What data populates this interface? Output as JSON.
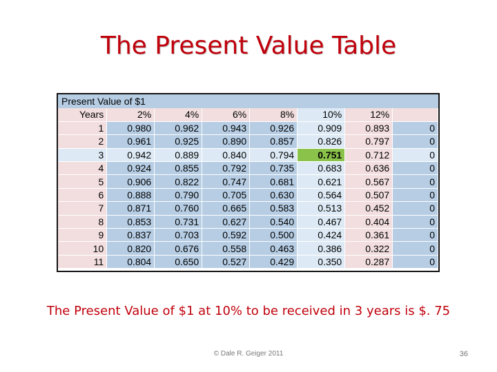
{
  "slide": {
    "title": "The Present Value Table",
    "caption": "The Present Value of $1 at 10% to be received in 3 years is $. 75",
    "footer": "© Dale R. Geiger 2011",
    "page_number": "36"
  },
  "pv_table": {
    "heading": "Present Value of $1",
    "columns": [
      "Years",
      "2%",
      "4%",
      "6%",
      "8%",
      "10%",
      "12%",
      ""
    ],
    "rows": [
      [
        "1",
        "0.980",
        "0.962",
        "0.943",
        "0.926",
        "0.909",
        "0.893",
        "0"
      ],
      [
        "2",
        "0.961",
        "0.925",
        "0.890",
        "0.857",
        "0.826",
        "0.797",
        "0"
      ],
      [
        "3",
        "0.942",
        "0.889",
        "0.840",
        "0.794",
        "0.751",
        "0.712",
        "0"
      ],
      [
        "4",
        "0.924",
        "0.855",
        "0.792",
        "0.735",
        "0.683",
        "0.636",
        "0"
      ],
      [
        "5",
        "0.906",
        "0.822",
        "0.747",
        "0.681",
        "0.621",
        "0.567",
        "0"
      ],
      [
        "6",
        "0.888",
        "0.790",
        "0.705",
        "0.630",
        "0.564",
        "0.507",
        "0"
      ],
      [
        "7",
        "0.871",
        "0.760",
        "0.665",
        "0.583",
        "0.513",
        "0.452",
        "0"
      ],
      [
        "8",
        "0.853",
        "0.731",
        "0.627",
        "0.540",
        "0.467",
        "0.404",
        "0"
      ],
      [
        "9",
        "0.837",
        "0.703",
        "0.592",
        "0.500",
        "0.424",
        "0.361",
        "0"
      ],
      [
        "10",
        "0.820",
        "0.676",
        "0.558",
        "0.463",
        "0.386",
        "0.322",
        "0"
      ],
      [
        "11",
        "0.804",
        "0.650",
        "0.527",
        "0.429",
        "0.350",
        "0.287",
        "0"
      ]
    ],
    "highlight_row_year": "3",
    "highlight_column": "10%",
    "highlight_color": "#8bc34a"
  }
}
